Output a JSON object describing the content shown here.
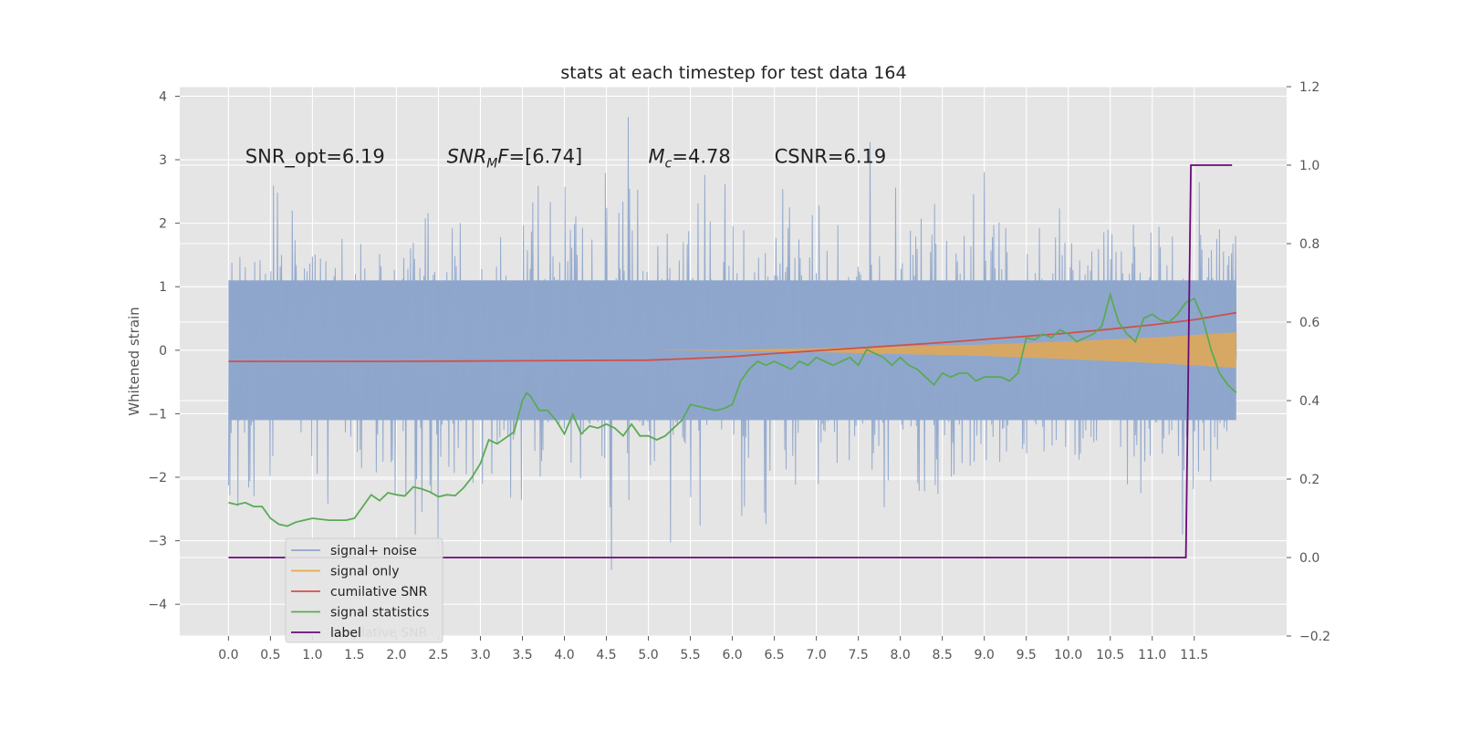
{
  "chart_data": {
    "type": "line",
    "title": "stats at each timestep for test data 164",
    "xlabel": "",
    "ylabel": "Whitened strain",
    "y2label": "",
    "grid": true,
    "xlim": [
      -0.58,
      12.6
    ],
    "ylim": [
      -4.5,
      4.15
    ],
    "y2lim": [
      -0.2,
      1.2
    ],
    "x_ticks": [
      "0.0",
      "0.5",
      "1.0",
      "1.5",
      "2.0",
      "2.5",
      "3.0",
      "3.5",
      "4.0",
      "4.5",
      "5.0",
      "5.5",
      "6.0",
      "6.5",
      "7.0",
      "7.5",
      "8.0",
      "8.5",
      "9.0",
      "9.5",
      "10.0",
      "10.5",
      "11.0",
      "11.5"
    ],
    "y_ticks": [
      "4",
      "3",
      "2",
      "1",
      "0",
      "−1",
      "−2",
      "−3",
      "−4"
    ],
    "y2_ticks": [
      "1.2",
      "1.0",
      "0.8",
      "0.6",
      "0.4",
      "0.2",
      "0.0",
      "−0.2"
    ],
    "annotations": [
      {
        "text": "SNR_opt=6.19",
        "x": 0.2,
        "y": 2.95
      },
      {
        "text": "SNR_MF=[6.74]",
        "main": "SNR",
        "sub": "M",
        "rest": "F=[6.74]",
        "x": 2.6,
        "y": 2.95
      },
      {
        "text": "M_c=4.78",
        "main": "M",
        "sub": "c",
        "rest": "=4.78",
        "x": 5.0,
        "y": 2.95
      },
      {
        "text": "CSNR=6.19",
        "x": 6.5,
        "y": 2.95
      }
    ],
    "legend": {
      "position": "lower-left",
      "entries": [
        "signal+ noise",
        "signal only",
        "cumilative SNR",
        "signal statistics",
        "label"
      ],
      "hidden_text": "cumilative SNR"
    },
    "series": [
      {
        "name": "signal+ noise",
        "axis": "left",
        "color": "#8fa6cc",
        "style": "noise",
        "x_range": [
          0.0,
          12.0
        ],
        "core_band": [
          -1.1,
          1.1
        ]
      },
      {
        "name": "signal only",
        "axis": "left",
        "color": "#e8a94a",
        "style": "chirp",
        "x": [
          5.0,
          6.0,
          7.0,
          8.0,
          9.0,
          10.0,
          11.0,
          12.0
        ],
        "y_upper": [
          0.0,
          0.01,
          0.03,
          0.06,
          0.09,
          0.14,
          0.2,
          0.28
        ],
        "y_lower": [
          0.0,
          -0.01,
          -0.03,
          -0.06,
          -0.09,
          -0.14,
          -0.2,
          -0.28
        ]
      },
      {
        "name": "cumilative SNR",
        "axis": "right",
        "color": "#d0504a",
        "x": [
          0.0,
          1.0,
          2.0,
          3.0,
          4.0,
          5.0,
          5.5,
          6.0,
          6.5,
          7.0,
          7.5,
          8.0,
          8.5,
          9.0,
          9.5,
          10.0,
          10.5,
          11.0,
          11.5,
          12.0
        ],
        "values": [
          0.5,
          0.5,
          0.5,
          0.501,
          0.502,
          0.503,
          0.507,
          0.512,
          0.52,
          0.527,
          0.534,
          0.541,
          0.548,
          0.556,
          0.564,
          0.572,
          0.582,
          0.593,
          0.606,
          0.624
        ]
      },
      {
        "name": "signal statistics",
        "axis": "right",
        "color": "#5aaa55",
        "x": [
          0.0,
          0.1,
          0.2,
          0.3,
          0.4,
          0.5,
          0.6,
          0.7,
          0.8,
          0.9,
          1.0,
          1.2,
          1.4,
          1.5,
          1.6,
          1.7,
          1.8,
          1.9,
          2.0,
          2.1,
          2.2,
          2.3,
          2.4,
          2.5,
          2.6,
          2.7,
          2.8,
          2.9,
          3.0,
          3.1,
          3.2,
          3.3,
          3.4,
          3.5,
          3.55,
          3.6,
          3.7,
          3.8,
          3.9,
          4.0,
          4.1,
          4.2,
          4.3,
          4.4,
          4.5,
          4.6,
          4.7,
          4.8,
          4.9,
          5.0,
          5.1,
          5.2,
          5.3,
          5.4,
          5.5,
          5.6,
          5.7,
          5.8,
          5.9,
          6.0,
          6.1,
          6.2,
          6.3,
          6.4,
          6.5,
          6.6,
          6.7,
          6.8,
          6.9,
          7.0,
          7.1,
          7.2,
          7.3,
          7.4,
          7.5,
          7.6,
          7.7,
          7.8,
          7.9,
          8.0,
          8.1,
          8.2,
          8.3,
          8.4,
          8.5,
          8.6,
          8.7,
          8.8,
          8.9,
          9.0,
          9.1,
          9.2,
          9.3,
          9.4,
          9.5,
          9.6,
          9.7,
          9.8,
          9.9,
          10.0,
          10.1,
          10.2,
          10.3,
          10.4,
          10.45,
          10.5,
          10.6,
          10.7,
          10.8,
          10.9,
          11.0,
          11.1,
          11.2,
          11.3,
          11.4,
          11.5,
          11.6,
          11.7,
          11.8,
          11.9,
          12.0
        ],
        "values": [
          0.14,
          0.135,
          0.14,
          0.13,
          0.13,
          0.1,
          0.085,
          0.08,
          0.09,
          0.095,
          0.1,
          0.095,
          0.095,
          0.1,
          0.13,
          0.16,
          0.145,
          0.165,
          0.16,
          0.157,
          0.18,
          0.175,
          0.167,
          0.155,
          0.16,
          0.158,
          0.178,
          0.205,
          0.24,
          0.3,
          0.29,
          0.305,
          0.32,
          0.4,
          0.42,
          0.41,
          0.375,
          0.375,
          0.35,
          0.315,
          0.365,
          0.315,
          0.335,
          0.33,
          0.34,
          0.33,
          0.31,
          0.34,
          0.31,
          0.31,
          0.3,
          0.31,
          0.33,
          0.35,
          0.39,
          0.385,
          0.38,
          0.375,
          0.38,
          0.39,
          0.45,
          0.48,
          0.5,
          0.49,
          0.5,
          0.49,
          0.48,
          0.5,
          0.49,
          0.51,
          0.5,
          0.49,
          0.5,
          0.51,
          0.49,
          0.53,
          0.52,
          0.51,
          0.49,
          0.51,
          0.49,
          0.48,
          0.46,
          0.44,
          0.47,
          0.46,
          0.47,
          0.47,
          0.45,
          0.46,
          0.46,
          0.46,
          0.45,
          0.47,
          0.56,
          0.555,
          0.57,
          0.56,
          0.58,
          0.57,
          0.55,
          0.56,
          0.57,
          0.59,
          0.63,
          0.67,
          0.6,
          0.57,
          0.55,
          0.61,
          0.62,
          0.605,
          0.6,
          0.62,
          0.65,
          0.66,
          0.61,
          0.53,
          0.47,
          0.44,
          0.42
        ]
      },
      {
        "name": "label",
        "axis": "right",
        "color": "#6a0a7a",
        "x": [
          0.0,
          11.4,
          11.46,
          11.95
        ],
        "values": [
          0.0,
          0.0,
          1.0,
          1.0
        ]
      }
    ]
  }
}
